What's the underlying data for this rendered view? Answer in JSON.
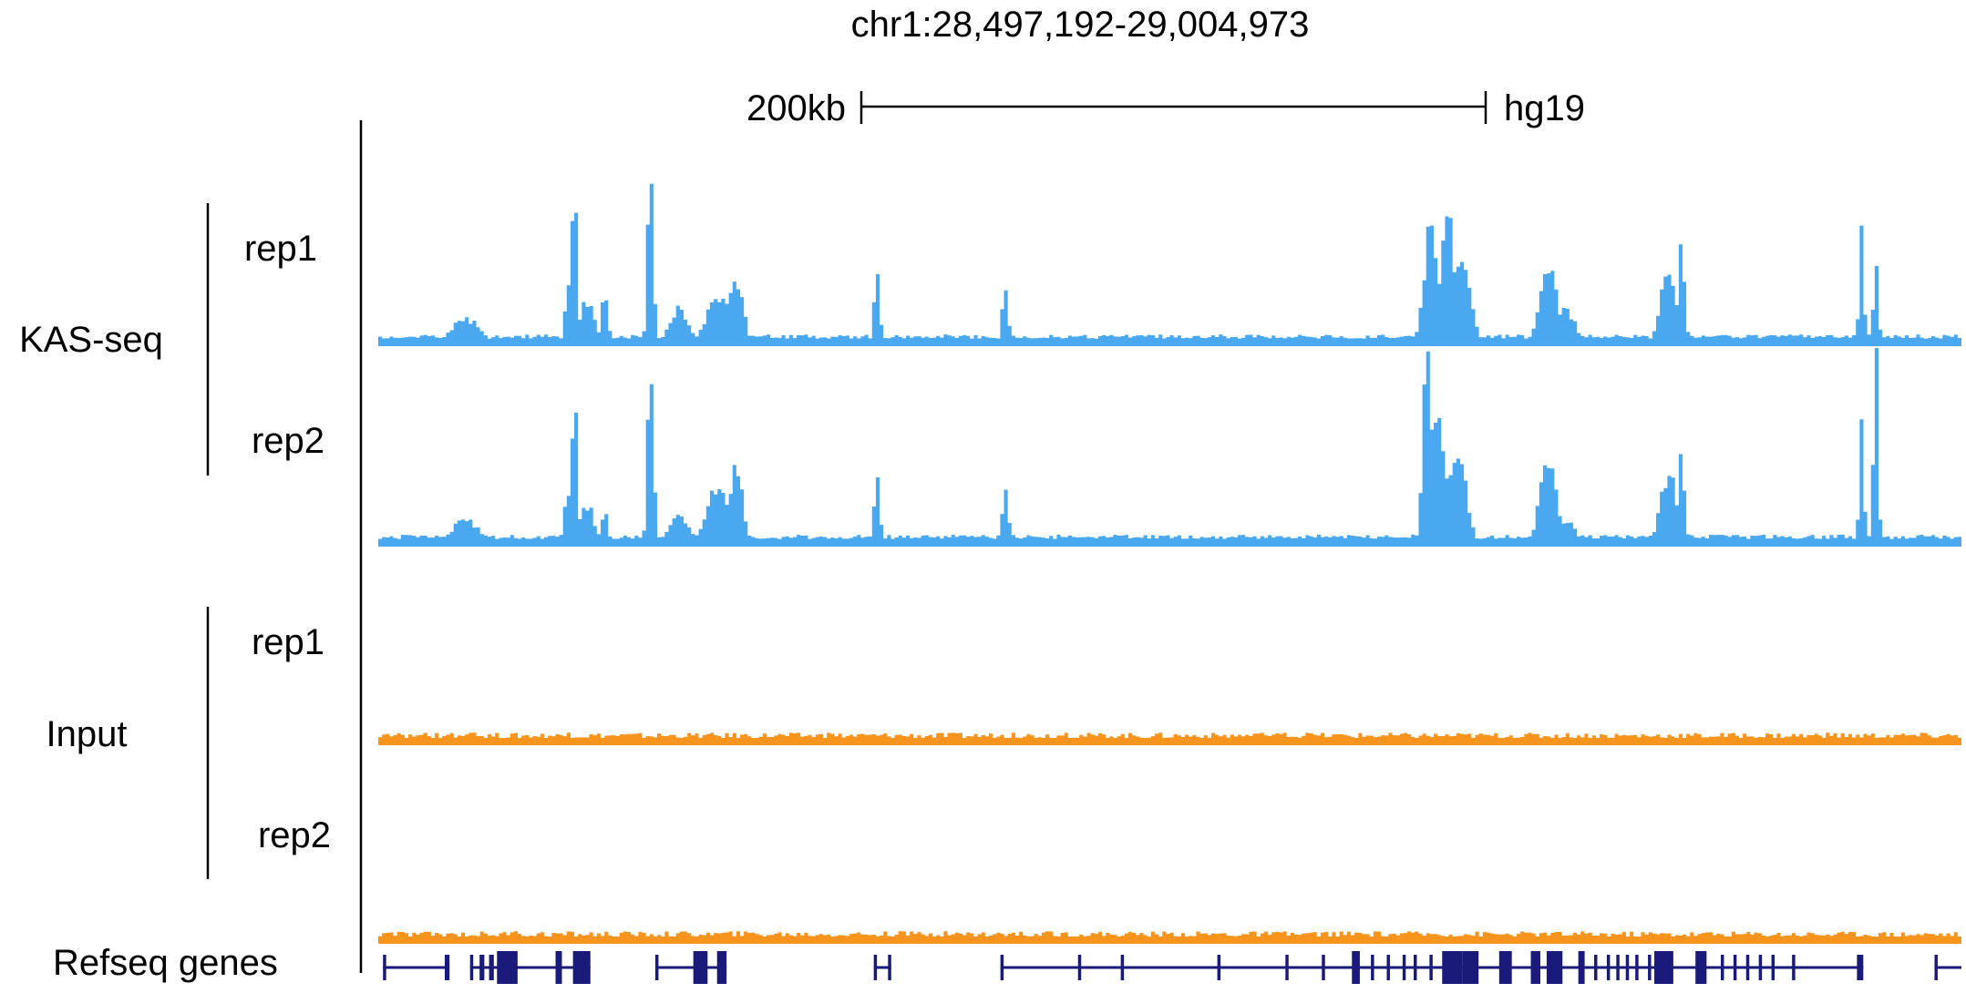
{
  "chart_data": {
    "type": "area",
    "title": "chr1:28,497,192-29,004,973",
    "scale_bar": {
      "label": "200kb",
      "genome": "hg19"
    },
    "groups": [
      {
        "label": "KAS-seq",
        "replicates": [
          "rep1",
          "rep2"
        ]
      },
      {
        "label": "Input",
        "replicates": [
          "rep1",
          "rep2"
        ]
      }
    ],
    "gene_track_label": "Refseq genes",
    "x_range": [
      0,
      100
    ],
    "y_range": [
      0,
      100
    ],
    "colors": {
      "kas": "#4aa8f0",
      "input": "#f7941d",
      "genes": "#1a1a7a"
    },
    "series": [
      {
        "name": "rep1",
        "group": "KAS-seq",
        "peaks": [
          {
            "x": 5.5,
            "h": 13,
            "w": 1.2
          },
          {
            "x": 12.4,
            "h": 85,
            "w": 0.25
          },
          {
            "x": 12.0,
            "h": 28,
            "w": 0.3
          },
          {
            "x": 13.2,
            "h": 22,
            "w": 0.6
          },
          {
            "x": 14.3,
            "h": 24,
            "w": 0.3
          },
          {
            "x": 17.2,
            "h": 100,
            "w": 0.25
          },
          {
            "x": 19.0,
            "h": 18,
            "w": 0.8
          },
          {
            "x": 21.5,
            "h": 25,
            "w": 1.0
          },
          {
            "x": 22.6,
            "h": 35,
            "w": 0.6
          },
          {
            "x": 31.5,
            "h": 40,
            "w": 0.25
          },
          {
            "x": 39.6,
            "h": 30,
            "w": 0.25
          },
          {
            "x": 66.5,
            "h": 63,
            "w": 0.6
          },
          {
            "x": 67.6,
            "h": 75,
            "w": 0.5
          },
          {
            "x": 68.5,
            "h": 45,
            "w": 0.7
          },
          {
            "x": 73.9,
            "h": 42,
            "w": 0.7
          },
          {
            "x": 75.0,
            "h": 18,
            "w": 0.8
          },
          {
            "x": 81.5,
            "h": 40,
            "w": 0.7
          },
          {
            "x": 82.3,
            "h": 48,
            "w": 0.3
          },
          {
            "x": 93.7,
            "h": 55,
            "w": 0.2
          },
          {
            "x": 94.6,
            "h": 46,
            "w": 0.2
          }
        ],
        "baseline": 2.5
      },
      {
        "name": "rep2",
        "group": "KAS-seq",
        "peaks": [
          {
            "x": 5.5,
            "h": 12,
            "w": 1.2
          },
          {
            "x": 12.4,
            "h": 73,
            "w": 0.25
          },
          {
            "x": 12.0,
            "h": 28,
            "w": 0.3
          },
          {
            "x": 13.2,
            "h": 20,
            "w": 0.6
          },
          {
            "x": 14.3,
            "h": 16,
            "w": 0.3
          },
          {
            "x": 17.2,
            "h": 100,
            "w": 0.25
          },
          {
            "x": 19.0,
            "h": 15,
            "w": 0.8
          },
          {
            "x": 21.5,
            "h": 30,
            "w": 1.0
          },
          {
            "x": 22.6,
            "h": 37,
            "w": 0.6
          },
          {
            "x": 31.5,
            "h": 38,
            "w": 0.25
          },
          {
            "x": 39.6,
            "h": 33,
            "w": 0.25
          },
          {
            "x": 66.3,
            "h": 100,
            "w": 0.4
          },
          {
            "x": 67.0,
            "h": 65,
            "w": 0.6
          },
          {
            "x": 68.2,
            "h": 50,
            "w": 0.7
          },
          {
            "x": 73.9,
            "h": 45,
            "w": 0.7
          },
          {
            "x": 75.0,
            "h": 12,
            "w": 0.8
          },
          {
            "x": 81.5,
            "h": 35,
            "w": 0.7
          },
          {
            "x": 82.3,
            "h": 45,
            "w": 0.3
          },
          {
            "x": 93.7,
            "h": 60,
            "w": 0.2
          },
          {
            "x": 94.6,
            "h": 100,
            "w": 0.2
          }
        ],
        "baseline": 2.5
      },
      {
        "name": "rep1",
        "group": "Input",
        "baseline": 2,
        "noise": 3
      },
      {
        "name": "rep2",
        "group": "Input",
        "baseline": 2,
        "noise": 3
      }
    ],
    "genes": [
      {
        "start": 0.3,
        "end": 4.5,
        "exons": [
          [
            0.3,
            0.5
          ],
          [
            4.2,
            4.5
          ]
        ]
      },
      {
        "start": 5.8,
        "end": 13.4,
        "exons": [
          [
            5.8,
            6.0
          ],
          [
            6.4,
            6.7
          ],
          [
            7.0,
            7.3
          ],
          [
            7.5,
            8.8
          ],
          [
            11.2,
            11.6
          ],
          [
            12.3,
            13.4
          ]
        ]
      },
      {
        "start": 17.5,
        "end": 22.0,
        "exons": [
          [
            17.5,
            17.7
          ],
          [
            19.9,
            20.8
          ],
          [
            21.4,
            22.0
          ]
        ]
      },
      {
        "start": 31.3,
        "end": 32.4,
        "exons": [
          [
            31.3,
            31.5
          ],
          [
            32.2,
            32.4
          ]
        ]
      },
      {
        "start": 39.3,
        "end": 93.8,
        "exons": [
          [
            39.3,
            39.5
          ],
          [
            44.2,
            44.4
          ],
          [
            46.9,
            47.1
          ],
          [
            53.0,
            53.2
          ],
          [
            57.3,
            57.5
          ],
          [
            59.6,
            59.8
          ],
          [
            61.5,
            62.0
          ],
          [
            62.7,
            62.9
          ],
          [
            63.7,
            63.9
          ],
          [
            64.7,
            64.9
          ],
          [
            65.4,
            65.6
          ],
          [
            66.4,
            66.6
          ],
          [
            67.2,
            68.5
          ],
          [
            68.5,
            69.5
          ],
          [
            70.8,
            71.6
          ],
          [
            72.8,
            73.4
          ],
          [
            73.8,
            74.8
          ],
          [
            75.8,
            76.2
          ],
          [
            76.8,
            77.0
          ],
          [
            77.6,
            77.8
          ],
          [
            78.2,
            78.4
          ],
          [
            78.8,
            79.0
          ],
          [
            79.4,
            79.6
          ],
          [
            80.2,
            80.4
          ],
          [
            80.6,
            81.8
          ],
          [
            83.2,
            83.9
          ],
          [
            84.8,
            85.0
          ],
          [
            85.6,
            85.8
          ],
          [
            86.4,
            86.6
          ],
          [
            87.2,
            87.4
          ],
          [
            88.0,
            88.2
          ],
          [
            89.3,
            89.5
          ],
          [
            93.4,
            93.8
          ]
        ]
      },
      {
        "start": 98.3,
        "end": 100,
        "exons": [
          [
            98.3,
            98.5
          ]
        ]
      }
    ]
  }
}
